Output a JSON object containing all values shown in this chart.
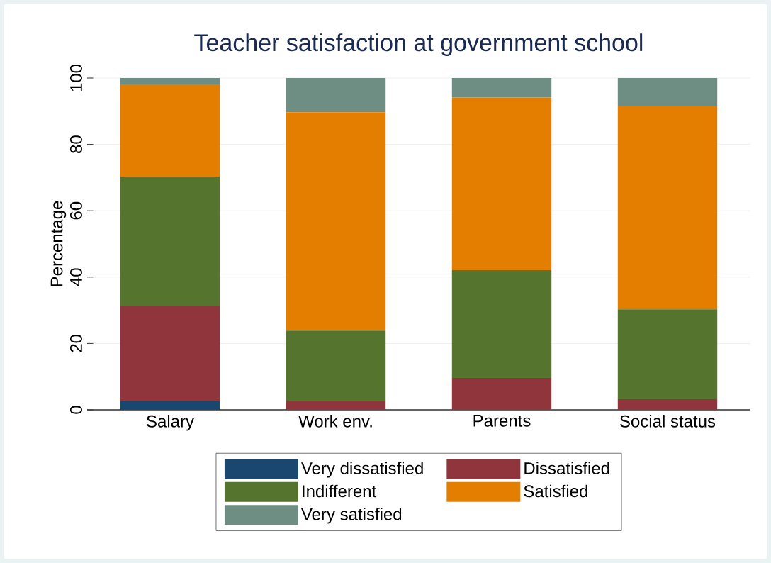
{
  "chart_data": {
    "type": "bar",
    "stacked": true,
    "title": "Teacher satisfaction at government school",
    "ylabel": "Percentage",
    "categories": [
      "Salary",
      "Work env.",
      "Parents",
      "Social status"
    ],
    "series": [
      {
        "name": "Very dissatisfied",
        "color": "#1a476f",
        "values": [
          2.6,
          0,
          0,
          0
        ]
      },
      {
        "name": "Dissatisfied",
        "color": "#90353b",
        "values": [
          28.6,
          2.8,
          9.6,
          3.2
        ]
      },
      {
        "name": "Indifferent",
        "color": "#55752f",
        "values": [
          39.1,
          21.1,
          32.5,
          27.1
        ]
      },
      {
        "name": "Satisfied",
        "color": "#e37e00",
        "values": [
          27.8,
          65.8,
          52.0,
          61.3
        ]
      },
      {
        "name": "Very satisfied",
        "color": "#6e8e84",
        "values": [
          1.9,
          10.3,
          5.9,
          8.4
        ]
      }
    ],
    "ylim": [
      0,
      100
    ],
    "yticks": [
      0,
      20,
      40,
      60,
      80,
      100
    ],
    "grid": "y",
    "legend": "bottom"
  }
}
